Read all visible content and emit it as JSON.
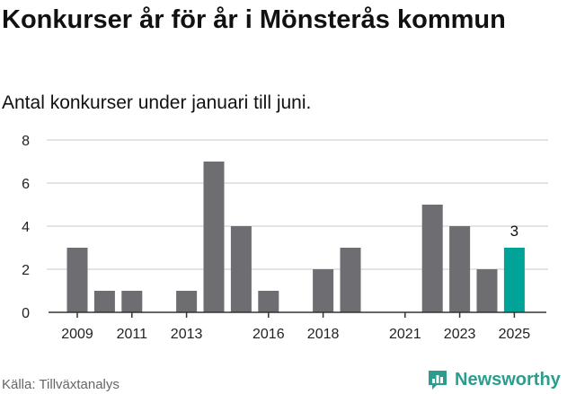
{
  "title": "Konkurser år för år i Mönsterås kommun",
  "subtitle": "Antal konkurser under januari till juni.",
  "source": "Källa: Tillväxtanalys",
  "brand": {
    "name": "Newsworthy",
    "icon": "newsworthy-logo-icon",
    "color": "#2a9d8f"
  },
  "chart_data": {
    "type": "bar",
    "title": "Konkurser år för år i Mönsterås kommun",
    "subtitle": "Antal konkurser under januari till juni.",
    "categories": [
      2009,
      2010,
      2011,
      2012,
      2013,
      2014,
      2015,
      2016,
      2017,
      2018,
      2019,
      2020,
      2021,
      2022,
      2023,
      2024,
      2025
    ],
    "values": [
      3,
      1,
      1,
      0,
      1,
      7,
      4,
      1,
      0,
      2,
      3,
      0,
      0,
      5,
      4,
      2,
      3
    ],
    "x_tick_labels": [
      "2009",
      "2011",
      "2013",
      "2016",
      "2018",
      "2021",
      "2023",
      "2025"
    ],
    "x_tick_years": [
      2009,
      2011,
      2013,
      2016,
      2018,
      2021,
      2023,
      2025
    ],
    "y_ticks": [
      "0",
      "2",
      "4",
      "6",
      "8"
    ],
    "ylim": [
      0,
      8
    ],
    "grid": true,
    "bar_color": "#6d6d72",
    "highlight_color": "#00a398",
    "highlight_category": 2025,
    "highlight_label": "3",
    "xlabel": "",
    "ylabel": ""
  }
}
